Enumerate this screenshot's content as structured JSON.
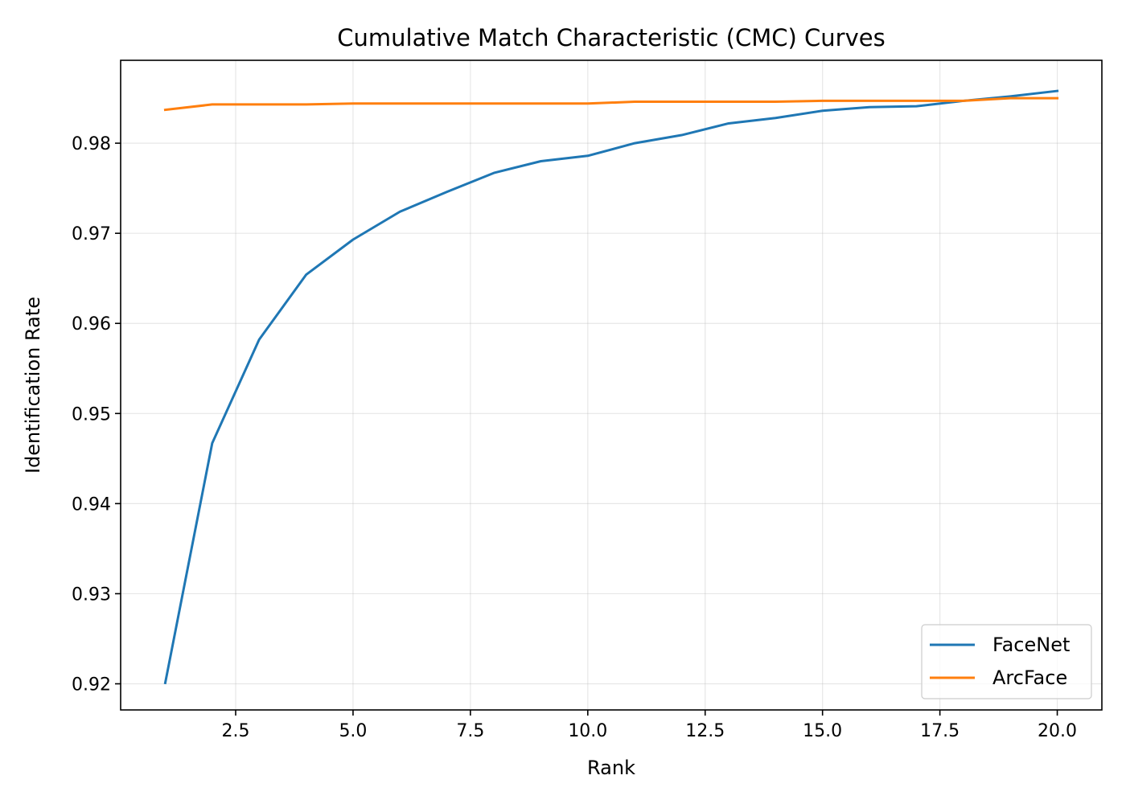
{
  "chart_data": {
    "type": "line",
    "title": "Cumulative Match Characteristic (CMC) Curves",
    "xlabel": "Rank",
    "ylabel": "Identification Rate",
    "xlim": [
      0.05,
      20.95
    ],
    "ylim": [
      0.9171,
      0.9892
    ],
    "xticks": [
      2.5,
      5.0,
      7.5,
      10.0,
      12.5,
      15.0,
      17.5,
      20.0
    ],
    "xtick_labels": [
      "2.5",
      "5.0",
      "7.5",
      "10.0",
      "12.5",
      "15.0",
      "17.5",
      "20.0"
    ],
    "yticks": [
      0.92,
      0.93,
      0.94,
      0.95,
      0.96,
      0.97,
      0.98
    ],
    "ytick_labels": [
      "0.92",
      "0.93",
      "0.94",
      "0.95",
      "0.96",
      "0.97",
      "0.98"
    ],
    "grid": true,
    "legend_position": "lower right",
    "x": [
      1,
      2,
      3,
      4,
      5,
      6,
      7,
      8,
      9,
      10,
      11,
      12,
      13,
      14,
      15,
      16,
      17,
      18,
      19,
      20
    ],
    "series": [
      {
        "name": "FaceNet",
        "color": "#1f77b4",
        "values": [
          0.9201,
          0.9467,
          0.9582,
          0.9654,
          0.9693,
          0.9724,
          0.9746,
          0.9767,
          0.978,
          0.9786,
          0.98,
          0.9809,
          0.9822,
          0.9828,
          0.9836,
          0.984,
          0.9841,
          0.9847,
          0.9852,
          0.9858
        ]
      },
      {
        "name": "ArcFace",
        "color": "#ff7f0e",
        "values": [
          0.9837,
          0.9843,
          0.9843,
          0.9843,
          0.9844,
          0.9844,
          0.9844,
          0.9844,
          0.9844,
          0.9844,
          0.9846,
          0.9846,
          0.9846,
          0.9846,
          0.9847,
          0.9847,
          0.9847,
          0.9847,
          0.985,
          0.985
        ]
      }
    ]
  }
}
